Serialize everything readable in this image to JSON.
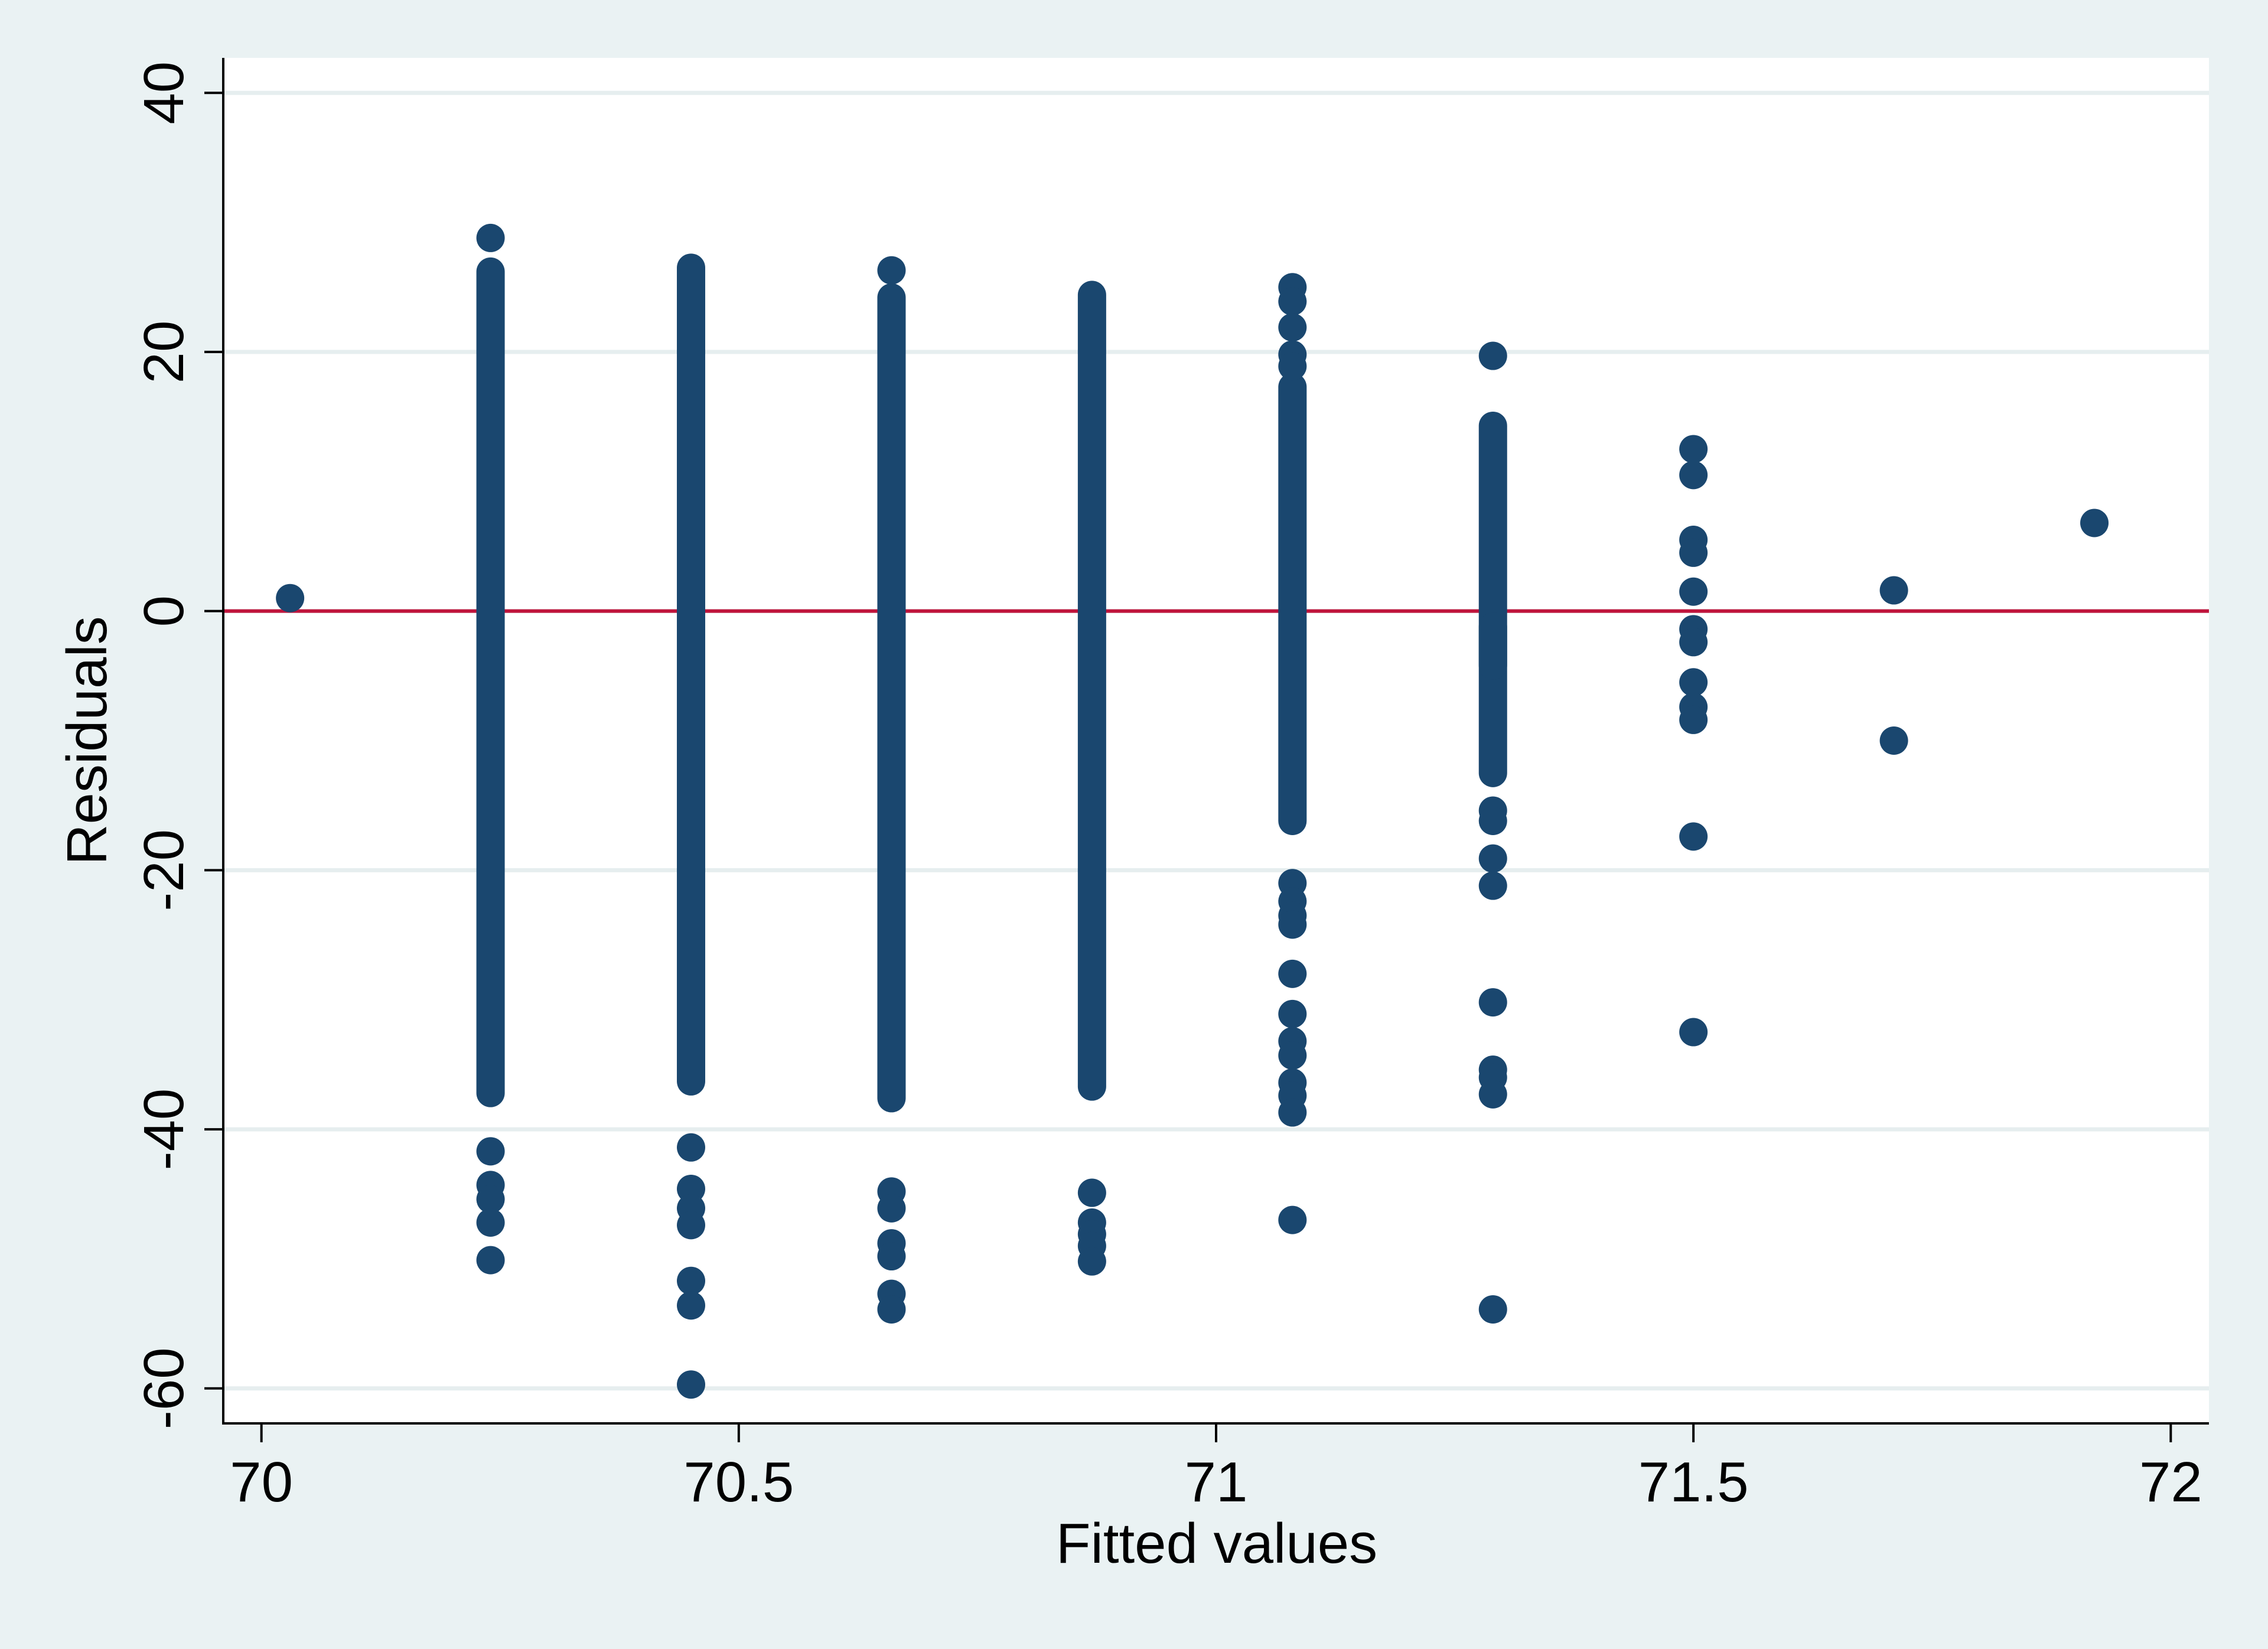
{
  "chart_data": {
    "type": "scatter",
    "title": "",
    "xlabel": "Fitted values",
    "ylabel": "Residuals",
    "xlim": [
      69.96,
      72.04
    ],
    "ylim": [
      -62.7,
      42.7
    ],
    "xticks": [
      70,
      70.5,
      71,
      71.5,
      72
    ],
    "xtick_labels": [
      "70",
      "70.5",
      "71",
      "71.5",
      "72"
    ],
    "yticks": [
      -60,
      -40,
      -20,
      0,
      20,
      40
    ],
    "ytick_labels": [
      "-60",
      "-40",
      "-20",
      "0",
      "20",
      "40"
    ],
    "grid": "horizontal",
    "legend": "none",
    "reference_line": {
      "y": 0,
      "color": "#c0143c"
    },
    "colors": {
      "point": "#1a476f",
      "plot_background": "#ffffff",
      "outer_background": "#eaf2f3",
      "grid": "#e6eeef"
    },
    "series": [
      {
        "color": "#1a476f",
        "columns": [
          {
            "x": 70.03,
            "isolated": [
              1
            ]
          },
          {
            "x": 70.24,
            "ranges": [
              [
                -37.2,
                26.2
              ]
            ],
            "isolated": [
              28.8,
              -41.7,
              -44.3,
              -45.4,
              -47.2,
              -50.1
            ]
          },
          {
            "x": 70.45,
            "ranges": [
              [
                -36.3,
                26.5
              ]
            ],
            "isolated": [
              -41.4,
              -44.6,
              -46.1,
              -47.4,
              -51.7,
              -53.6,
              -59.7
            ]
          },
          {
            "x": 70.66,
            "ranges": [
              [
                -37.6,
                24.2
              ]
            ],
            "isolated": [
              26.3,
              -44.8,
              -46.1,
              -48.8,
              -49.8,
              -52.7,
              -53.9
            ]
          },
          {
            "x": 70.87,
            "ranges": [
              [
                -36.7,
                24.4
              ]
            ],
            "isolated": [
              -44.9,
              -47.2,
              -48.1,
              -49.0,
              -50.2
            ]
          },
          {
            "x": 71.08,
            "ranges": [
              [
                -16.2,
                17.3
              ]
            ],
            "isolated": [
              25.0,
              23.9,
              21.9,
              19.8,
              18.9,
              -21.0,
              -22.4,
              -23.5,
              -24.2,
              -28.0,
              -31.1,
              -33.2,
              -34.3,
              -36.4,
              -37.4,
              -38.7,
              -47.0
            ]
          },
          {
            "x": 71.29,
            "ranges": [
              [
                -12.5,
                14.3
              ],
              [
                -4.2,
                -1.2
              ]
            ],
            "isolated": [
              19.7,
              -15.4,
              -16.2,
              -19.1,
              -21.2,
              -30.2,
              -35.4,
              -36.0,
              -37.3,
              -53.9
            ]
          },
          {
            "x": 71.5,
            "isolated": [
              12.5,
              10.5,
              5.5,
              4.5,
              1.5,
              -1.4,
              -2.4,
              -5.5,
              -7.4,
              -8.4,
              -17.4,
              -32.5
            ]
          },
          {
            "x": 71.71,
            "isolated": [
              1.6,
              -10.0
            ]
          },
          {
            "x": 71.92,
            "isolated": [
              6.8
            ]
          }
        ]
      }
    ]
  }
}
